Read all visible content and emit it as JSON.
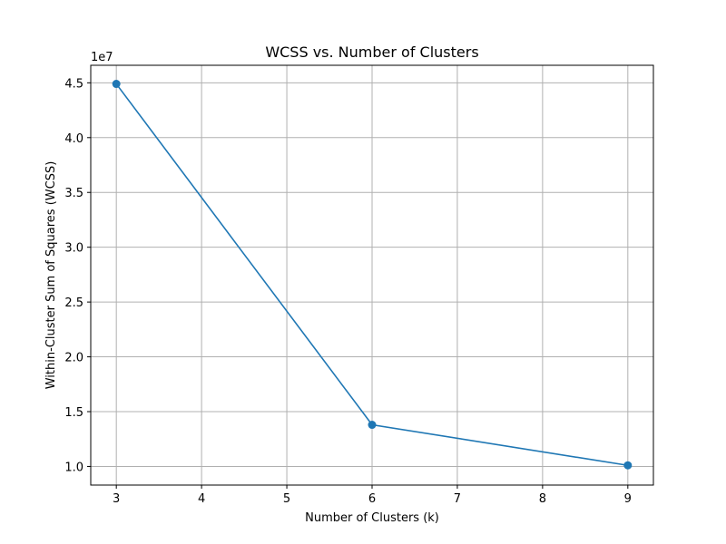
{
  "chart_data": {
    "type": "line",
    "title": "WCSS vs. Number of Clusters",
    "xlabel": "Number of Clusters (k)",
    "ylabel": "Within-Cluster Sum of Squares (WCSS)",
    "y_offset_label": "1e7",
    "xlim": [
      2.7,
      9.3
    ],
    "ylim": [
      8300000.0,
      46600000.0
    ],
    "x_ticks": [
      3,
      4,
      5,
      6,
      7,
      8,
      9
    ],
    "y_ticks": [
      10000000.0,
      15000000.0,
      20000000.0,
      25000000.0,
      30000000.0,
      35000000.0,
      40000000.0,
      45000000.0
    ],
    "y_tick_labels": [
      "1.0",
      "1.5",
      "2.0",
      "2.5",
      "3.0",
      "3.5",
      "4.0",
      "4.5"
    ],
    "grid": true,
    "series": [
      {
        "x": [
          3,
          6,
          9
        ],
        "y": [
          44900000,
          13800000,
          10100000
        ],
        "color": "#1f77b4",
        "marker": "circle"
      }
    ]
  }
}
